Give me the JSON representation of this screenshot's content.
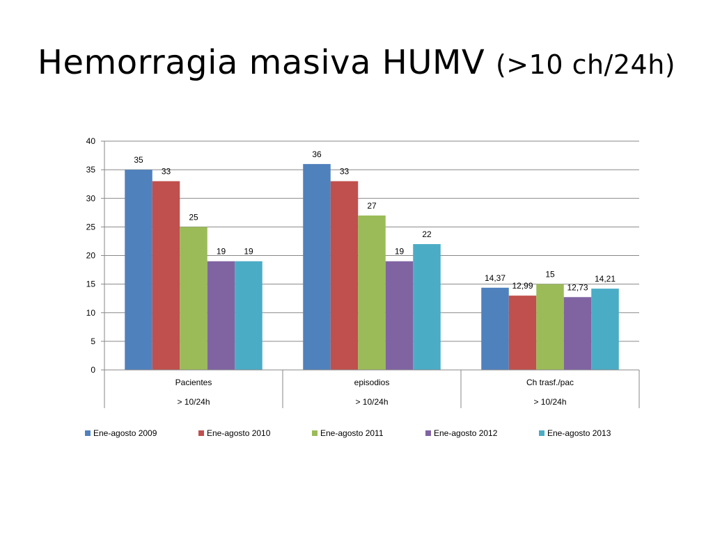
{
  "slide": {
    "title_main": "Hemorragia masiva HUMV",
    "title_sub": "(>10 ch/24h)"
  },
  "chart_data": {
    "type": "bar",
    "categories": [
      {
        "top": "Pacientes",
        "bottom": "> 10/24h"
      },
      {
        "top": "episodios",
        "bottom": "> 10/24h"
      },
      {
        "top": "Ch trasf./pac",
        "bottom": "> 10/24h"
      }
    ],
    "series": [
      {
        "name": "Ene-agosto 2009",
        "color": "#4F81BD",
        "values": [
          35,
          36,
          14.37
        ],
        "labels": [
          "35",
          "36",
          "14,37"
        ]
      },
      {
        "name": "Ene-agosto 2010",
        "color": "#C0504D",
        "values": [
          33,
          33,
          12.99
        ],
        "labels": [
          "33",
          "33",
          "12,99"
        ]
      },
      {
        "name": "Ene-agosto 2011",
        "color": "#9BBB59",
        "values": [
          25,
          27,
          15
        ],
        "labels": [
          "25",
          "27",
          "15"
        ]
      },
      {
        "name": "Ene-agosto 2012",
        "color": "#8064A2",
        "values": [
          19,
          19,
          12.73
        ],
        "labels": [
          "19",
          "19",
          "12,73"
        ]
      },
      {
        "name": "Ene-agosto 2013",
        "color": "#4BACC6",
        "values": [
          19,
          22,
          14.21
        ],
        "labels": [
          "19",
          "22",
          "14,21"
        ]
      }
    ],
    "ylim": [
      0,
      40
    ],
    "yticks": [
      0,
      5,
      10,
      15,
      20,
      25,
      30,
      35,
      40
    ],
    "grid": true,
    "legend": "bottom"
  }
}
